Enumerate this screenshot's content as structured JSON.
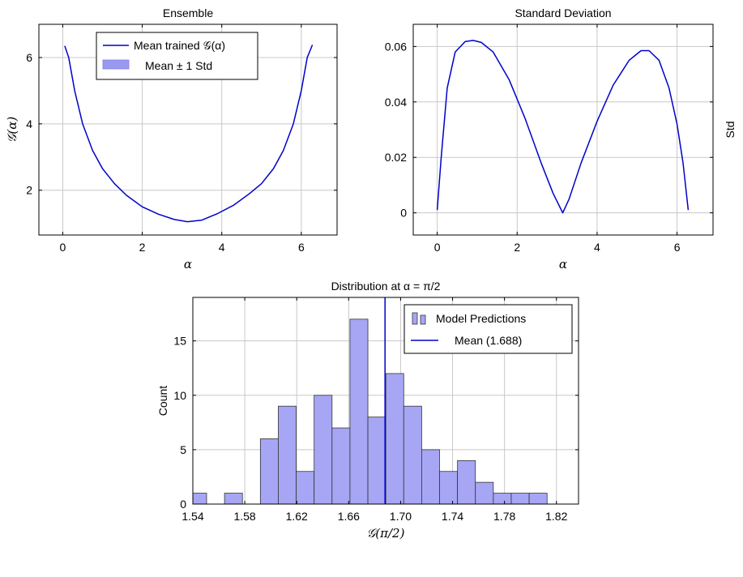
{
  "chart_data": [
    {
      "type": "line",
      "title": "Ensemble",
      "xlabel": "α",
      "ylabel": "𝒢(α)",
      "xlim": [
        -0.6,
        6.9
      ],
      "ylim": [
        0.65,
        7.0
      ],
      "xticks": [
        0,
        2,
        4,
        6
      ],
      "yticks": [
        2,
        4,
        6
      ],
      "grid": true,
      "legend_position": "top-center",
      "series": [
        {
          "name": "Mean trained 𝒢(α)",
          "color": "#0000cc",
          "x": [
            0.05,
            0.15,
            0.3,
            0.5,
            0.75,
            1.0,
            1.3,
            1.6,
            2.0,
            2.4,
            2.8,
            3.14,
            3.5,
            3.9,
            4.3,
            4.7,
            5.0,
            5.3,
            5.55,
            5.8,
            6.0,
            6.15,
            6.28
          ],
          "y": [
            6.35,
            6.0,
            5.0,
            4.0,
            3.2,
            2.65,
            2.2,
            1.85,
            1.5,
            1.28,
            1.12,
            1.05,
            1.1,
            1.3,
            1.55,
            1.9,
            2.2,
            2.65,
            3.2,
            4.0,
            5.0,
            6.0,
            6.38
          ]
        },
        {
          "name": "Mean ± 1 Std",
          "color": "#9999f0",
          "type": "band"
        }
      ]
    },
    {
      "type": "line",
      "title": "Standard Deviation",
      "xlabel": "α",
      "ylabel": "Std",
      "xlim": [
        -0.6,
        6.9
      ],
      "ylim": [
        -0.008,
        0.068
      ],
      "xticks": [
        0,
        2,
        4,
        6
      ],
      "yticks": [
        0,
        0.02,
        0.04,
        0.06
      ],
      "ytick_labels": [
        "0",
        "0.02",
        "0.04",
        "0.06"
      ],
      "grid": true,
      "series": [
        {
          "name": "",
          "color": "#0000cc",
          "x": [
            0.0,
            0.1,
            0.25,
            0.45,
            0.7,
            0.9,
            1.1,
            1.4,
            1.8,
            2.2,
            2.6,
            2.9,
            3.14,
            3.3,
            3.6,
            4.0,
            4.4,
            4.8,
            5.1,
            5.3,
            5.55,
            5.8,
            6.0,
            6.15,
            6.28
          ],
          "y": [
            0.001,
            0.02,
            0.045,
            0.058,
            0.0618,
            0.0622,
            0.0615,
            0.058,
            0.048,
            0.034,
            0.018,
            0.007,
            0.0,
            0.005,
            0.018,
            0.033,
            0.046,
            0.055,
            0.0585,
            0.0585,
            0.055,
            0.045,
            0.032,
            0.018,
            0.001
          ]
        }
      ]
    },
    {
      "type": "bar",
      "title": "Distribution at α = π/2",
      "xlabel": "𝒢(π/2)",
      "ylabel": "Count",
      "xlim": [
        1.54,
        1.837
      ],
      "ylim": [
        0,
        19
      ],
      "xticks": [
        1.54,
        1.58,
        1.62,
        1.66,
        1.7,
        1.74,
        1.78,
        1.82
      ],
      "xtick_labels": [
        "1.54",
        "1.58",
        "1.62",
        "1.66",
        "1.70",
        "1.74",
        "1.78",
        "1.82"
      ],
      "yticks": [
        0,
        5,
        10,
        15
      ],
      "grid": true,
      "legend_position": "top-right",
      "bin_width": 0.0138,
      "bin_start": 1.5368,
      "counts": [
        1,
        0,
        1,
        0,
        6,
        9,
        3,
        10,
        7,
        17,
        8,
        12,
        9,
        5,
        3,
        4,
        2,
        1,
        1,
        1
      ],
      "series": [
        {
          "name": "Model Predictions",
          "color": "#a6a6f5"
        },
        {
          "name": "Mean (1.688)",
          "color": "#0000cc",
          "value": 1.688
        }
      ]
    }
  ]
}
